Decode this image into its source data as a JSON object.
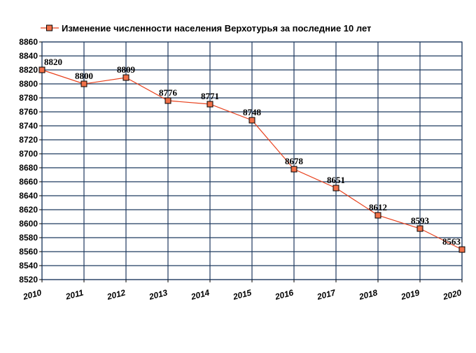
{
  "chart_data": {
    "type": "line",
    "title": "",
    "xlabel": "",
    "ylabel": "",
    "x": [
      "2010",
      "2011",
      "2012",
      "2013",
      "2014",
      "2015",
      "2016",
      "2017",
      "2018",
      "2019",
      "2020"
    ],
    "series": [
      {
        "name": "Изменение численности населения Верхотурья за последние 10 лет",
        "values": [
          8820,
          8800,
          8809,
          8776,
          8771,
          8748,
          8678,
          8651,
          8612,
          8593,
          8563
        ],
        "color": "#e8401c",
        "marker": "square",
        "marker_fill": "#f07048"
      }
    ],
    "data_labels": [
      "8820",
      "8800",
      "8809",
      "8776",
      "8771",
      "8748",
      "8678",
      "8651",
      "8612",
      "8593",
      "8563"
    ],
    "y_ticks": [
      "8520",
      "8540",
      "8560",
      "8580",
      "8600",
      "8620",
      "8640",
      "8660",
      "8680",
      "8700",
      "8720",
      "8740",
      "8760",
      "8780",
      "8800",
      "8820",
      "8840",
      "8860"
    ],
    "ylim": [
      8520,
      8860
    ],
    "grid": true,
    "grid_color": "#1f3a5f",
    "legend_position": "top-left"
  }
}
